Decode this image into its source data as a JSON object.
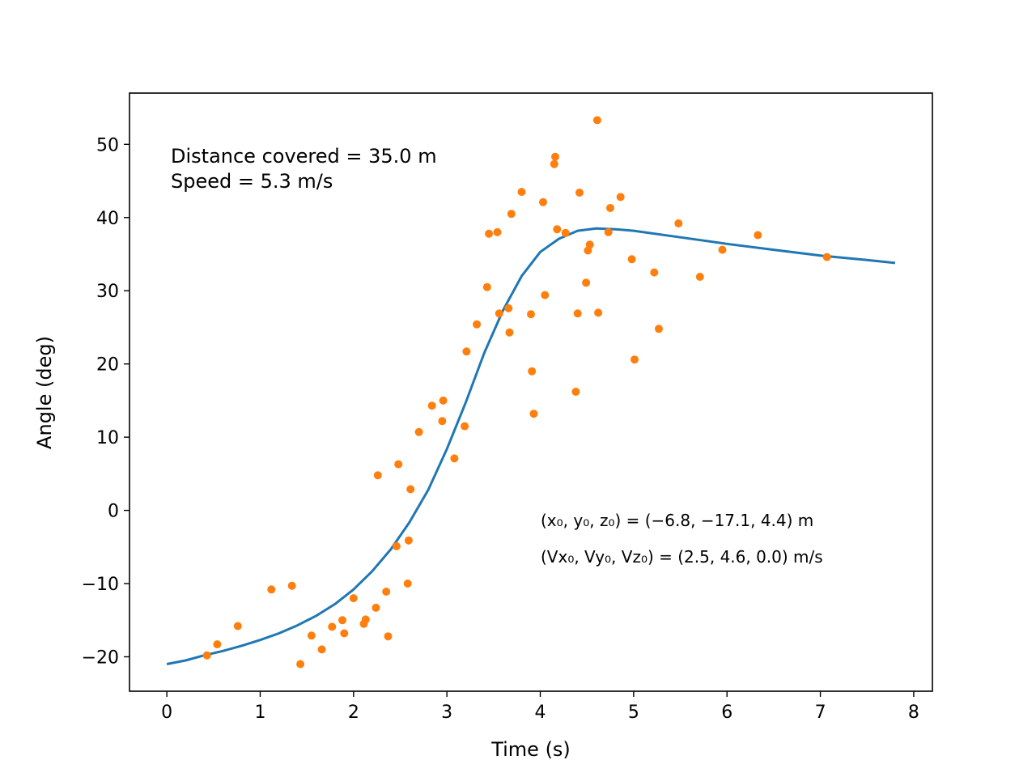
{
  "chart_data": {
    "type": "scatter",
    "title": "",
    "xlabel": "Time (s)",
    "ylabel": "Angle (deg)",
    "xlim": [
      -0.4,
      8.2
    ],
    "ylim": [
      -24.7,
      57.0
    ],
    "xticks": [
      0,
      1,
      2,
      3,
      4,
      5,
      6,
      7,
      8
    ],
    "xtick_labels": [
      "0",
      "1",
      "2",
      "3",
      "4",
      "5",
      "6",
      "7",
      "8"
    ],
    "yticks": [
      -20,
      -10,
      0,
      10,
      20,
      30,
      40,
      50
    ],
    "ytick_labels": [
      "−20",
      "−10",
      "0",
      "10",
      "20",
      "30",
      "40",
      "50"
    ],
    "grid": false,
    "annotations": {
      "distance": "Distance covered = 35.0 m",
      "speed": "Speed = 5.3 m/s",
      "position_text": "(x₀, y₀, z₀) = (−6.8, −17.1, 4.4) m",
      "velocity_text": "(Vx₀, Vy₀, Vz₀) = (2.5, 4.6, 0.0) m/s"
    },
    "series": [
      {
        "kind": "line",
        "color": "#1f77b4",
        "x": [
          0.0,
          0.2,
          0.4,
          0.6,
          0.8,
          1.0,
          1.2,
          1.4,
          1.6,
          1.8,
          2.0,
          2.2,
          2.4,
          2.6,
          2.8,
          3.0,
          3.2,
          3.4,
          3.6,
          3.8,
          4.0,
          4.2,
          4.4,
          4.6,
          4.8,
          5.0,
          5.5,
          6.0,
          6.5,
          7.0,
          7.5,
          7.8
        ],
        "y": [
          -21.0,
          -20.5,
          -19.8,
          -19.2,
          -18.5,
          -17.7,
          -16.8,
          -15.7,
          -14.4,
          -12.8,
          -10.8,
          -8.3,
          -5.3,
          -1.6,
          2.8,
          8.4,
          14.7,
          21.5,
          27.3,
          32.0,
          35.3,
          37.1,
          38.2,
          38.5,
          38.4,
          38.2,
          37.3,
          36.4,
          35.6,
          34.8,
          34.2,
          33.8
        ]
      },
      {
        "kind": "scatter",
        "color": "#ff7f0e",
        "points": [
          [
            0.43,
            -19.8
          ],
          [
            0.54,
            -18.3
          ],
          [
            0.76,
            -15.8
          ],
          [
            1.12,
            -10.8
          ],
          [
            1.34,
            -10.3
          ],
          [
            1.43,
            -21.0
          ],
          [
            1.55,
            -17.1
          ],
          [
            1.66,
            -19.0
          ],
          [
            1.77,
            -15.9
          ],
          [
            1.88,
            -15.0
          ],
          [
            1.9,
            -16.8
          ],
          [
            2.0,
            -12.0
          ],
          [
            2.11,
            -15.5
          ],
          [
            2.13,
            -14.9
          ],
          [
            2.24,
            -13.3
          ],
          [
            2.26,
            4.8
          ],
          [
            2.35,
            -11.1
          ],
          [
            2.37,
            -17.2
          ],
          [
            2.46,
            -4.9
          ],
          [
            2.48,
            6.3
          ],
          [
            2.58,
            -10.0
          ],
          [
            2.59,
            -4.1
          ],
          [
            2.61,
            2.9
          ],
          [
            2.7,
            10.7
          ],
          [
            2.84,
            14.3
          ],
          [
            2.95,
            12.2
          ],
          [
            2.96,
            15.0
          ],
          [
            3.08,
            7.1
          ],
          [
            3.19,
            11.5
          ],
          [
            3.21,
            21.7
          ],
          [
            3.32,
            25.4
          ],
          [
            3.43,
            30.5
          ],
          [
            3.45,
            37.8
          ],
          [
            3.54,
            38.0
          ],
          [
            3.56,
            26.9
          ],
          [
            3.66,
            27.6
          ],
          [
            3.67,
            24.3
          ],
          [
            3.69,
            40.5
          ],
          [
            3.8,
            43.5
          ],
          [
            3.9,
            26.8
          ],
          [
            3.91,
            19.0
          ],
          [
            3.93,
            13.2
          ],
          [
            4.03,
            42.1
          ],
          [
            4.05,
            29.4
          ],
          [
            4.15,
            47.3
          ],
          [
            4.16,
            48.3
          ],
          [
            4.18,
            38.4
          ],
          [
            4.27,
            37.9
          ],
          [
            4.38,
            16.2
          ],
          [
            4.4,
            26.9
          ],
          [
            4.42,
            43.4
          ],
          [
            4.49,
            31.1
          ],
          [
            4.51,
            35.5
          ],
          [
            4.53,
            36.3
          ],
          [
            4.61,
            53.3
          ],
          [
            4.62,
            27.0
          ],
          [
            4.73,
            38.0
          ],
          [
            4.75,
            41.3
          ],
          [
            4.86,
            42.8
          ],
          [
            4.98,
            34.3
          ],
          [
            5.01,
            20.6
          ],
          [
            5.22,
            32.5
          ],
          [
            5.27,
            24.8
          ],
          [
            5.48,
            39.2
          ],
          [
            5.71,
            31.9
          ],
          [
            5.95,
            35.6
          ],
          [
            6.33,
            37.6
          ],
          [
            7.07,
            34.6
          ]
        ]
      }
    ]
  }
}
